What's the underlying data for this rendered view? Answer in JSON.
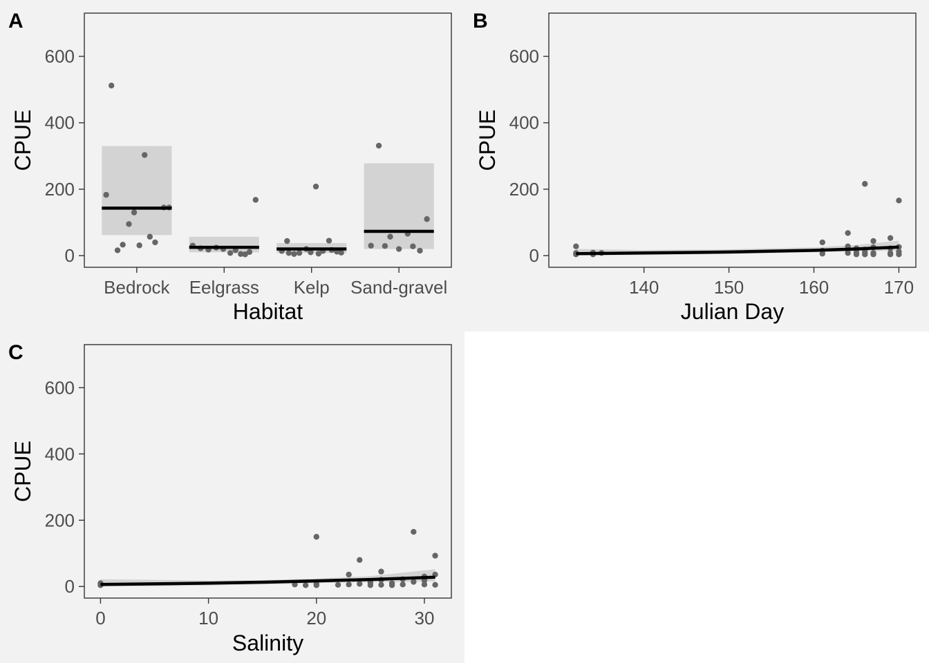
{
  "colors": {
    "panel_background": "#f2f2f2",
    "plot_background": "#f2f2f2",
    "frame": "#333333",
    "points": "#666666",
    "ribbon": "#d3d3d3",
    "fit_line": "#000000",
    "tick_text": "#4d4d4d"
  },
  "chart_data": [
    {
      "type": "scatter",
      "tag": "A",
      "title": "",
      "xlabel": "Habitat",
      "ylabel": "CPUE",
      "x_type": "categorical",
      "categories": [
        "Bedrock",
        "Eelgrass",
        "Kelp",
        "Sand-gravel"
      ],
      "ylim": [
        -35,
        730
      ],
      "yticks": [
        0,
        200,
        400,
        600
      ],
      "ytick_labels": [
        "0",
        "200",
        "400",
        "600"
      ],
      "grid": false,
      "summary": [
        {
          "category": "Bedrock",
          "mean": 143,
          "lower": 62,
          "upper": 330
        },
        {
          "category": "Eelgrass",
          "mean": 25,
          "lower": 10,
          "upper": 57
        },
        {
          "category": "Kelp",
          "mean": 20,
          "lower": 8,
          "upper": 38
        },
        {
          "category": "Sand-gravel",
          "mean": 73,
          "lower": 20,
          "upper": 278
        }
      ],
      "points": [
        {
          "category": "Bedrock",
          "offset": -0.29,
          "y": 512
        },
        {
          "category": "Bedrock",
          "offset": 0.09,
          "y": 303
        },
        {
          "category": "Bedrock",
          "offset": -0.35,
          "y": 183
        },
        {
          "category": "Bedrock",
          "offset": 0.31,
          "y": 145
        },
        {
          "category": "Bedrock",
          "offset": 0.37,
          "y": 145
        },
        {
          "category": "Bedrock",
          "offset": -0.03,
          "y": 130
        },
        {
          "category": "Bedrock",
          "offset": -0.09,
          "y": 95
        },
        {
          "category": "Bedrock",
          "offset": 0.15,
          "y": 57
        },
        {
          "category": "Bedrock",
          "offset": 0.21,
          "y": 40
        },
        {
          "category": "Bedrock",
          "offset": -0.16,
          "y": 33
        },
        {
          "category": "Bedrock",
          "offset": 0.03,
          "y": 31
        },
        {
          "category": "Bedrock",
          "offset": -0.22,
          "y": 16
        },
        {
          "category": "Eelgrass",
          "offset": 0.36,
          "y": 168
        },
        {
          "category": "Eelgrass",
          "offset": -0.36,
          "y": 30
        },
        {
          "category": "Eelgrass",
          "offset": -0.27,
          "y": 22
        },
        {
          "category": "Eelgrass",
          "offset": -0.18,
          "y": 18
        },
        {
          "category": "Eelgrass",
          "offset": -0.09,
          "y": 24
        },
        {
          "category": "Eelgrass",
          "offset": -0.01,
          "y": 20
        },
        {
          "category": "Eelgrass",
          "offset": 0.07,
          "y": 8
        },
        {
          "category": "Eelgrass",
          "offset": 0.13,
          "y": 16
        },
        {
          "category": "Eelgrass",
          "offset": 0.19,
          "y": 5
        },
        {
          "category": "Eelgrass",
          "offset": 0.24,
          "y": 4
        },
        {
          "category": "Eelgrass",
          "offset": 0.29,
          "y": 11
        },
        {
          "category": "Kelp",
          "offset": 0.05,
          "y": 208
        },
        {
          "category": "Kelp",
          "offset": 0.2,
          "y": 45
        },
        {
          "category": "Kelp",
          "offset": -0.28,
          "y": 44
        },
        {
          "category": "Kelp",
          "offset": -0.34,
          "y": 14
        },
        {
          "category": "Kelp",
          "offset": -0.26,
          "y": 8
        },
        {
          "category": "Kelp",
          "offset": -0.2,
          "y": 5
        },
        {
          "category": "Kelp",
          "offset": -0.14,
          "y": 8
        },
        {
          "category": "Kelp",
          "offset": -0.06,
          "y": 20
        },
        {
          "category": "Kelp",
          "offset": -0.01,
          "y": 10
        },
        {
          "category": "Kelp",
          "offset": 0.08,
          "y": 6
        },
        {
          "category": "Kelp",
          "offset": 0.13,
          "y": 14
        },
        {
          "category": "Kelp",
          "offset": 0.23,
          "y": 17
        },
        {
          "category": "Kelp",
          "offset": 0.29,
          "y": 12
        },
        {
          "category": "Kelp",
          "offset": 0.34,
          "y": 9
        },
        {
          "category": "Sand-gravel",
          "offset": -0.23,
          "y": 331
        },
        {
          "category": "Sand-gravel",
          "offset": 0.32,
          "y": 110
        },
        {
          "category": "Sand-gravel",
          "offset": 0.1,
          "y": 66
        },
        {
          "category": "Sand-gravel",
          "offset": -0.1,
          "y": 57
        },
        {
          "category": "Sand-gravel",
          "offset": -0.32,
          "y": 30
        },
        {
          "category": "Sand-gravel",
          "offset": -0.16,
          "y": 29
        },
        {
          "category": "Sand-gravel",
          "offset": 0.16,
          "y": 28
        },
        {
          "category": "Sand-gravel",
          "offset": 0.0,
          "y": 20
        },
        {
          "category": "Sand-gravel",
          "offset": 0.24,
          "y": 15
        }
      ]
    },
    {
      "type": "scatter",
      "tag": "B",
      "title": "",
      "xlabel": "Julian Day",
      "ylabel": "CPUE",
      "x_type": "numeric",
      "xlim": [
        128.8,
        172
      ],
      "xticks": [
        140,
        150,
        160,
        170
      ],
      "xtick_labels": [
        "140",
        "150",
        "160",
        "170"
      ],
      "ylim": [
        -35,
        730
      ],
      "yticks": [
        0,
        200,
        400,
        600
      ],
      "ytick_labels": [
        "0",
        "200",
        "400",
        "600"
      ],
      "grid": false,
      "points": [
        {
          "x": 132,
          "y": 28
        },
        {
          "x": 132,
          "y": 8
        },
        {
          "x": 132,
          "y": 4
        },
        {
          "x": 134,
          "y": 9
        },
        {
          "x": 134,
          "y": 4
        },
        {
          "x": 135,
          "y": 8
        },
        {
          "x": 161,
          "y": 40
        },
        {
          "x": 161,
          "y": 15
        },
        {
          "x": 161,
          "y": 6
        },
        {
          "x": 164,
          "y": 68
        },
        {
          "x": 164,
          "y": 28
        },
        {
          "x": 164,
          "y": 18
        },
        {
          "x": 164,
          "y": 8
        },
        {
          "x": 165,
          "y": 22
        },
        {
          "x": 165,
          "y": 10
        },
        {
          "x": 165,
          "y": 4
        },
        {
          "x": 166,
          "y": 216
        },
        {
          "x": 166,
          "y": 18
        },
        {
          "x": 166,
          "y": 10
        },
        {
          "x": 166,
          "y": 4
        },
        {
          "x": 167,
          "y": 44
        },
        {
          "x": 167,
          "y": 25
        },
        {
          "x": 167,
          "y": 8
        },
        {
          "x": 167,
          "y": 4
        },
        {
          "x": 169,
          "y": 53
        },
        {
          "x": 169,
          "y": 22
        },
        {
          "x": 169,
          "y": 8
        },
        {
          "x": 169,
          "y": 4
        },
        {
          "x": 170,
          "y": 166
        },
        {
          "x": 170,
          "y": 26
        },
        {
          "x": 170,
          "y": 12
        },
        {
          "x": 170,
          "y": 4
        }
      ],
      "fit": [
        {
          "x": 132,
          "y": 6,
          "lower": 1,
          "upper": 20
        },
        {
          "x": 140,
          "y": 8,
          "lower": 2,
          "upper": 17
        },
        {
          "x": 150,
          "y": 11,
          "lower": 5,
          "upper": 19
        },
        {
          "x": 160,
          "y": 16,
          "lower": 10,
          "upper": 25
        },
        {
          "x": 165,
          "y": 20,
          "lower": 13,
          "upper": 32
        },
        {
          "x": 170,
          "y": 26,
          "lower": 15,
          "upper": 45
        }
      ]
    },
    {
      "type": "scatter",
      "tag": "C",
      "title": "",
      "xlabel": "Salinity",
      "ylabel": "CPUE",
      "x_type": "numeric",
      "xlim": [
        -1.5,
        32.5
      ],
      "xticks": [
        0,
        10,
        20,
        30
      ],
      "xtick_labels": [
        "0",
        "10",
        "20",
        "30"
      ],
      "ylim": [
        -35,
        730
      ],
      "yticks": [
        0,
        200,
        400,
        600
      ],
      "ytick_labels": [
        "0",
        "200",
        "400",
        "600"
      ],
      "grid": false,
      "points": [
        {
          "x": 0,
          "y": 10
        },
        {
          "x": 0,
          "y": 4
        },
        {
          "x": 18,
          "y": 6
        },
        {
          "x": 19,
          "y": 4
        },
        {
          "x": 20,
          "y": 150
        },
        {
          "x": 20,
          "y": 8
        },
        {
          "x": 20,
          "y": 4
        },
        {
          "x": 22,
          "y": 5
        },
        {
          "x": 23,
          "y": 36
        },
        {
          "x": 23,
          "y": 6
        },
        {
          "x": 24,
          "y": 80
        },
        {
          "x": 24,
          "y": 8
        },
        {
          "x": 25,
          "y": 12
        },
        {
          "x": 25,
          "y": 4
        },
        {
          "x": 26,
          "y": 45
        },
        {
          "x": 26,
          "y": 20
        },
        {
          "x": 26,
          "y": 5
        },
        {
          "x": 27,
          "y": 10
        },
        {
          "x": 27,
          "y": 4
        },
        {
          "x": 28,
          "y": 22
        },
        {
          "x": 28,
          "y": 6
        },
        {
          "x": 29,
          "y": 165
        },
        {
          "x": 29,
          "y": 14
        },
        {
          "x": 30,
          "y": 30
        },
        {
          "x": 30,
          "y": 18
        },
        {
          "x": 30,
          "y": 6
        },
        {
          "x": 31,
          "y": 93
        },
        {
          "x": 31,
          "y": 36
        },
        {
          "x": 31,
          "y": 5
        }
      ],
      "fit": [
        {
          "x": 0,
          "y": 6,
          "lower": 0,
          "upper": 22
        },
        {
          "x": 5,
          "y": 8,
          "lower": 1,
          "upper": 20
        },
        {
          "x": 10,
          "y": 10,
          "lower": 3,
          "upper": 18
        },
        {
          "x": 15,
          "y": 13,
          "lower": 6,
          "upper": 19
        },
        {
          "x": 20,
          "y": 17,
          "lower": 10,
          "upper": 24
        },
        {
          "x": 25,
          "y": 21,
          "lower": 13,
          "upper": 31
        },
        {
          "x": 31,
          "y": 28,
          "lower": 15,
          "upper": 52
        }
      ]
    }
  ]
}
